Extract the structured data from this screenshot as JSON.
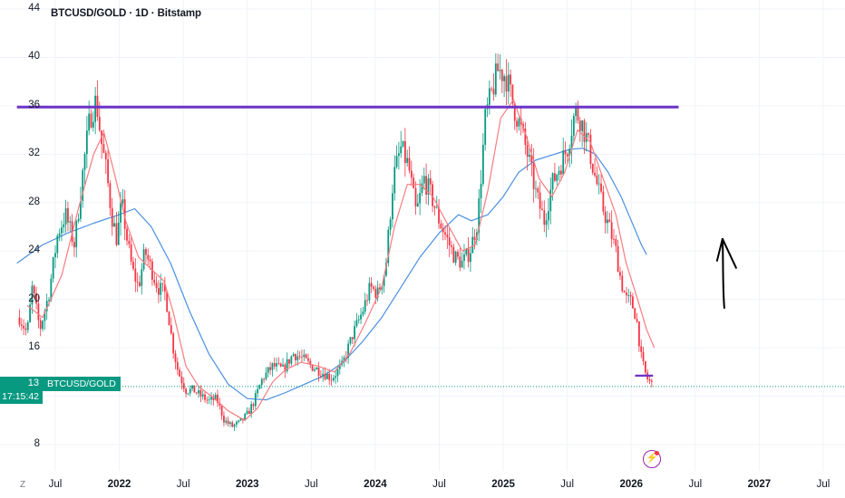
{
  "header": {
    "title": "BTCUSD/GOLD · 1D · Bitstamp"
  },
  "price_label": {
    "value": "13",
    "countdown": "17:15:42",
    "symbol": "BTCUSD/GOLD"
  },
  "toolbar": {
    "zoom_label": "Z"
  },
  "colors": {
    "up": "#089981",
    "down": "#f23645",
    "ma_fast": "#f77c80",
    "ma_slow": "#4a90e2",
    "drawing": "#6c33c9",
    "arrow": "#000000",
    "grid": "#f0f3fa"
  },
  "chart_data": {
    "type": "candlestick",
    "title": "BTCUSD/GOLD · 1D · Bitstamp",
    "y_ticks": [
      8,
      12,
      16,
      20,
      24,
      28,
      32,
      36,
      40,
      44
    ],
    "y_tick_labels": [
      "8",
      "",
      "16",
      "20",
      "24",
      "28",
      "32",
      "36",
      "40",
      "44"
    ],
    "x_ticks": [
      {
        "label": "Jul",
        "year": false,
        "t": 2021.5
      },
      {
        "label": "2022",
        "year": true,
        "t": 2022.0
      },
      {
        "label": "Jul",
        "year": false,
        "t": 2022.5
      },
      {
        "label": "2023",
        "year": true,
        "t": 2023.0
      },
      {
        "label": "Jul",
        "year": false,
        "t": 2023.5
      },
      {
        "label": "2024",
        "year": true,
        "t": 2024.0
      },
      {
        "label": "Jul",
        "year": false,
        "t": 2024.5
      },
      {
        "label": "2025",
        "year": true,
        "t": 2025.0
      },
      {
        "label": "Jul",
        "year": false,
        "t": 2025.5
      },
      {
        "label": "2026",
        "year": true,
        "t": 2026.0
      },
      {
        "label": "Jul",
        "year": false,
        "t": 2026.5
      },
      {
        "label": "2027",
        "year": true,
        "t": 2027.0
      },
      {
        "label": "Jul",
        "year": false,
        "t": 2027.5
      }
    ],
    "price_path": [
      [
        2021.22,
        18.5
      ],
      [
        2021.28,
        17.2
      ],
      [
        2021.32,
        21.0
      ],
      [
        2021.38,
        17.5
      ],
      [
        2021.45,
        20.5
      ],
      [
        2021.52,
        25.5
      ],
      [
        2021.58,
        27.0
      ],
      [
        2021.65,
        24.5
      ],
      [
        2021.72,
        31.0
      ],
      [
        2021.77,
        35.0
      ],
      [
        2021.82,
        36.5
      ],
      [
        2021.86,
        33.0
      ],
      [
        2021.9,
        30.5
      ],
      [
        2021.94,
        27.0
      ],
      [
        2021.98,
        25.0
      ],
      [
        2022.02,
        28.0
      ],
      [
        2022.06,
        25.0
      ],
      [
        2022.1,
        22.5
      ],
      [
        2022.15,
        21.0
      ],
      [
        2022.2,
        24.0
      ],
      [
        2022.25,
        22.5
      ],
      [
        2022.3,
        21.0
      ],
      [
        2022.36,
        20.5
      ],
      [
        2022.42,
        16.0
      ],
      [
        2022.46,
        14.0
      ],
      [
        2022.52,
        12.5
      ],
      [
        2022.58,
        12.5
      ],
      [
        2022.64,
        12.0
      ],
      [
        2022.7,
        11.6
      ],
      [
        2022.76,
        11.8
      ],
      [
        2022.82,
        10.0
      ],
      [
        2022.88,
        9.5
      ],
      [
        2022.94,
        9.8
      ],
      [
        2023.0,
        10.5
      ],
      [
        2023.05,
        11.5
      ],
      [
        2023.12,
        13.5
      ],
      [
        2023.2,
        14.5
      ],
      [
        2023.28,
        14.2
      ],
      [
        2023.36,
        15.5
      ],
      [
        2023.42,
        15.2
      ],
      [
        2023.5,
        14.5
      ],
      [
        2023.58,
        14.0
      ],
      [
        2023.66,
        13.5
      ],
      [
        2023.74,
        14.5
      ],
      [
        2023.82,
        17.0
      ],
      [
        2023.9,
        19.0
      ],
      [
        2023.96,
        21.0
      ],
      [
        2024.02,
        20.5
      ],
      [
        2024.08,
        22.5
      ],
      [
        2024.14,
        30.0
      ],
      [
        2024.2,
        32.5
      ],
      [
        2024.26,
        31.0
      ],
      [
        2024.32,
        27.0
      ],
      [
        2024.38,
        30.0
      ],
      [
        2024.44,
        28.5
      ],
      [
        2024.5,
        26.5
      ],
      [
        2024.56,
        25.0
      ],
      [
        2024.62,
        23.5
      ],
      [
        2024.68,
        23.0
      ],
      [
        2024.74,
        24.0
      ],
      [
        2024.8,
        26.5
      ],
      [
        2024.86,
        35.0
      ],
      [
        2024.92,
        37.5
      ],
      [
        2024.96,
        39.0
      ],
      [
        2025.02,
        38.5
      ],
      [
        2025.08,
        36.0
      ],
      [
        2025.14,
        34.0
      ],
      [
        2025.2,
        31.5
      ],
      [
        2025.26,
        28.5
      ],
      [
        2025.32,
        26.5
      ],
      [
        2025.38,
        29.5
      ],
      [
        2025.44,
        31.0
      ],
      [
        2025.5,
        32.5
      ],
      [
        2025.56,
        35.5
      ],
      [
        2025.6,
        35.0
      ],
      [
        2025.66,
        33.0
      ],
      [
        2025.72,
        30.0
      ],
      [
        2025.78,
        27.5
      ],
      [
        2025.84,
        25.5
      ],
      [
        2025.88,
        24.0
      ],
      [
        2025.92,
        21.5
      ],
      [
        2025.96,
        20.0
      ],
      [
        2026.0,
        19.8
      ],
      [
        2026.04,
        18.5
      ],
      [
        2026.08,
        15.0
      ],
      [
        2026.12,
        13.5
      ],
      [
        2026.16,
        13.0
      ]
    ],
    "ma_fast": [
      [
        2021.28,
        19.5
      ],
      [
        2021.4,
        18.5
      ],
      [
        2021.55,
        22.0
      ],
      [
        2021.68,
        27.5
      ],
      [
        2021.8,
        32.0
      ],
      [
        2021.88,
        33.8
      ],
      [
        2021.96,
        30.5
      ],
      [
        2022.05,
        26.5
      ],
      [
        2022.15,
        23.5
      ],
      [
        2022.25,
        22.5
      ],
      [
        2022.35,
        21.5
      ],
      [
        2022.42,
        19.0
      ],
      [
        2022.52,
        14.5
      ],
      [
        2022.62,
        12.8
      ],
      [
        2022.72,
        12.0
      ],
      [
        2022.85,
        10.8
      ],
      [
        2022.98,
        10.0
      ],
      [
        2023.08,
        11.0
      ],
      [
        2023.2,
        13.2
      ],
      [
        2023.3,
        14.2
      ],
      [
        2023.42,
        14.8
      ],
      [
        2023.55,
        14.5
      ],
      [
        2023.68,
        14.0
      ],
      [
        2023.8,
        15.5
      ],
      [
        2023.92,
        18.0
      ],
      [
        2024.05,
        21.0
      ],
      [
        2024.15,
        26.0
      ],
      [
        2024.25,
        29.5
      ],
      [
        2024.35,
        29.5
      ],
      [
        2024.45,
        28.5
      ],
      [
        2024.55,
        26.5
      ],
      [
        2024.68,
        24.0
      ],
      [
        2024.78,
        24.5
      ],
      [
        2024.88,
        29.0
      ],
      [
        2024.98,
        35.0
      ],
      [
        2025.08,
        36.5
      ],
      [
        2025.18,
        33.5
      ],
      [
        2025.28,
        30.0
      ],
      [
        2025.38,
        28.5
      ],
      [
        2025.48,
        30.5
      ],
      [
        2025.58,
        34.0
      ],
      [
        2025.68,
        33.0
      ],
      [
        2025.78,
        30.0
      ],
      [
        2025.88,
        27.0
      ],
      [
        2025.96,
        23.0
      ],
      [
        2026.05,
        20.0
      ],
      [
        2026.12,
        17.5
      ],
      [
        2026.18,
        16.0
      ]
    ],
    "ma_slow": [
      [
        2021.2,
        23.0
      ],
      [
        2021.4,
        24.5
      ],
      [
        2021.6,
        25.5
      ],
      [
        2021.8,
        26.3
      ],
      [
        2022.0,
        27.0
      ],
      [
        2022.12,
        27.5
      ],
      [
        2022.25,
        26.0
      ],
      [
        2022.4,
        23.0
      ],
      [
        2022.55,
        19.0
      ],
      [
        2022.7,
        15.5
      ],
      [
        2022.85,
        13.0
      ],
      [
        2023.0,
        11.8
      ],
      [
        2023.15,
        11.7
      ],
      [
        2023.3,
        12.3
      ],
      [
        2023.45,
        13.0
      ],
      [
        2023.6,
        13.7
      ],
      [
        2023.75,
        14.8
      ],
      [
        2023.9,
        16.5
      ],
      [
        2024.05,
        18.5
      ],
      [
        2024.2,
        21.0
      ],
      [
        2024.35,
        23.5
      ],
      [
        2024.5,
        25.5
      ],
      [
        2024.65,
        27.0
      ],
      [
        2024.75,
        26.5
      ],
      [
        2024.88,
        27.0
      ],
      [
        2025.0,
        28.5
      ],
      [
        2025.12,
        30.5
      ],
      [
        2025.25,
        31.5
      ],
      [
        2025.4,
        32.0
      ],
      [
        2025.52,
        32.4
      ],
      [
        2025.62,
        32.5
      ],
      [
        2025.72,
        32.0
      ],
      [
        2025.82,
        30.5
      ],
      [
        2025.92,
        28.5
      ],
      [
        2026.0,
        26.5
      ],
      [
        2026.08,
        24.5
      ],
      [
        2026.12,
        23.7
      ]
    ],
    "horizontal_line": {
      "price": 35.9,
      "t_start": 2021.2,
      "t_end": 2026.37
    },
    "short_line": {
      "price": 13.7,
      "t_start": 2026.03,
      "t_end": 2026.17
    },
    "current_price_line": 12.8,
    "arrow": {
      "t": 2026.72,
      "from": 19.3,
      "to": 25.0
    }
  }
}
